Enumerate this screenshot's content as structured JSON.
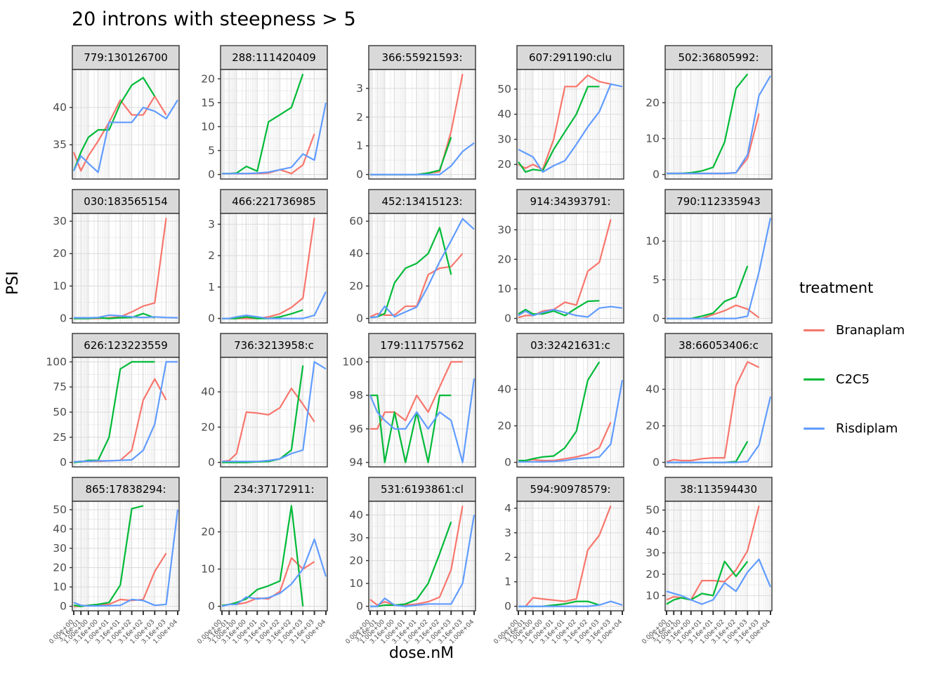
{
  "title": "20 introns with steepness > 5",
  "axes": {
    "x_label": "dose.nM",
    "y_label": "PSI"
  },
  "legend": {
    "title": "treatment",
    "items": [
      {
        "label": "Branaplam",
        "color": "#F8766D"
      },
      {
        "label": "C2C5",
        "color": "#00BA38"
      },
      {
        "label": "Risdiplam",
        "color": "#619CFF"
      }
    ]
  },
  "chart_data": {
    "type": "line",
    "title": "20 introns with steepness > 5",
    "xlabel": "dose.nM",
    "ylabel": "PSI",
    "x_scale": "pseudo-log",
    "grid": true,
    "legend_position": "right",
    "doses": [
      0,
      0.316,
      1,
      3.16,
      10,
      31.6,
      100,
      316,
      1000,
      3160,
      10000
    ],
    "x_tick_labels": [
      "0.00e+00",
      "3.16e-01",
      "1.00e+00",
      "3.16e+00",
      "1.00e+01",
      "3.16e+01",
      "1.00e+02",
      "3.16e+02",
      "1.00e+03",
      "3.16e+03",
      "1.00e+04"
    ],
    "series_names": [
      "Branaplam",
      "C2C5",
      "Risdiplam"
    ],
    "series_colors": {
      "Branaplam": "#F8766D",
      "C2C5": "#00BA38",
      "Risdiplam": "#619CFF"
    },
    "facets": [
      {
        "label": "779:130126700",
        "ylim": [
          31,
          44.5
        ],
        "yticks": [
          35,
          40
        ],
        "series": {
          "Branaplam": [
            34,
            31.5,
            33.5,
            35.5,
            38,
            41,
            39,
            39,
            41.5,
            39
          ],
          "C2C5": [
            31.5,
            34,
            36,
            37,
            37,
            40.5,
            43,
            44,
            41.5
          ],
          "Risdiplam": [
            31.5,
            33.5,
            32.5,
            31.3,
            38,
            38,
            38,
            40,
            39.5,
            38.5,
            41
          ]
        }
      },
      {
        "label": "288:111420409",
        "ylim": [
          0,
          21
        ],
        "yticks": [
          0,
          5,
          10,
          15,
          20
        ],
        "series": {
          "Branaplam": [
            0.2,
            0.2,
            0.2,
            0.2,
            0.2,
            0.3,
            1,
            0.2,
            2,
            8.5
          ],
          "C2C5": [
            0.2,
            0.2,
            0.3,
            1.7,
            0.7,
            11,
            12.5,
            14,
            21
          ],
          "Risdiplam": [
            0.2,
            0.2,
            0.2,
            0.2,
            0.3,
            0.5,
            1,
            1.5,
            4.3,
            3,
            15
          ]
        }
      },
      {
        "label": "366:55921593:",
        "ylim": [
          0,
          3.5
        ],
        "yticks": [
          0,
          1,
          2,
          3
        ],
        "series": {
          "Branaplam": [
            0,
            0,
            0,
            0,
            0,
            0,
            0.05,
            0.1,
            1.5,
            3.5
          ],
          "C2C5": [
            0,
            0,
            0,
            0,
            0,
            0,
            0.05,
            0.15,
            1.3
          ],
          "Risdiplam": [
            0,
            0,
            0,
            0,
            0,
            0,
            0,
            0,
            0.3,
            0.8,
            1.1
          ]
        }
      },
      {
        "label": "607:291190:clu",
        "ylim": [
          16,
          56
        ],
        "yticks": [
          20,
          30,
          40,
          50
        ],
        "series": {
          "Branaplam": [
            20,
            18.5,
            20,
            18,
            30,
            51,
            51,
            55.5,
            53,
            52
          ],
          "C2C5": [
            21,
            17,
            18,
            17.5,
            26,
            33,
            40,
            51,
            51
          ],
          "Risdiplam": [
            26,
            24.5,
            23,
            17,
            19.5,
            21.5,
            28,
            35,
            41,
            52,
            51
          ]
        }
      },
      {
        "label": "502:36805992:",
        "ylim": [
          0,
          28
        ],
        "yticks": [
          0,
          10,
          20
        ],
        "series": {
          "Branaplam": [
            0.3,
            0.3,
            0.3,
            0.3,
            0.3,
            0.3,
            0.3,
            0.5,
            4.5,
            17
          ],
          "C2C5": [
            0.3,
            0.3,
            0.3,
            0.5,
            1,
            2,
            9,
            24,
            28
          ],
          "Risdiplam": [
            0.3,
            0.3,
            0.3,
            0.3,
            0.3,
            0.3,
            0.3,
            0.5,
            5.5,
            22,
            27.5
          ]
        }
      },
      {
        "label": "030:183565154",
        "ylim": [
          0,
          31
        ],
        "yticks": [
          0,
          10,
          20,
          30
        ],
        "series": {
          "Branaplam": [
            0,
            0,
            0,
            0,
            0.2,
            0.5,
            2,
            3.8,
            4.8,
            31
          ],
          "C2C5": [
            0,
            0,
            0,
            0.2,
            0,
            0.2,
            0.3,
            1.5,
            0.2
          ],
          "Risdiplam": [
            0.2,
            0.2,
            0.2,
            0.3,
            1,
            0.8,
            0.5,
            0.3,
            0.5,
            0.3,
            0.2
          ]
        }
      },
      {
        "label": "466:221736985",
        "ylim": [
          0,
          3.2
        ],
        "yticks": [
          0,
          1,
          2,
          3
        ],
        "series": {
          "Branaplam": [
            0,
            0,
            0,
            0,
            0,
            0.05,
            0.15,
            0.35,
            0.65,
            3.2
          ],
          "C2C5": [
            0,
            0,
            0,
            0.05,
            0,
            0,
            0.05,
            0.15,
            0.27
          ],
          "Risdiplam": [
            0,
            0,
            0.05,
            0.1,
            0.05,
            0,
            0,
            0,
            0,
            0.1,
            0.85
          ]
        }
      },
      {
        "label": "452:13415123:",
        "ylim": [
          0,
          62
        ],
        "yticks": [
          0,
          20,
          40,
          60
        ],
        "series": {
          "Branaplam": [
            1,
            3,
            2,
            2,
            7.5,
            7.5,
            27,
            31,
            32,
            40
          ],
          "C2C5": [
            0.5,
            1,
            3,
            22,
            31,
            34,
            40,
            56,
            27
          ],
          "Risdiplam": [
            0.5,
            1,
            7.5,
            1,
            4,
            7,
            20,
            35,
            48,
            61.5,
            55
          ]
        }
      },
      {
        "label": "914:34393791:",
        "ylim": [
          0,
          34
        ],
        "yticks": [
          0,
          10,
          20,
          30
        ],
        "series": {
          "Branaplam": [
            0.3,
            1,
            1,
            2.5,
            3,
            5.5,
            4.5,
            16,
            19,
            33.5
          ],
          "C2C5": [
            1.5,
            3,
            1.5,
            1.5,
            2.5,
            1,
            3.5,
            5.8,
            6
          ],
          "Risdiplam": [
            1,
            2.5,
            1,
            2,
            3,
            2,
            1,
            0.5,
            3.5,
            4,
            3.5
          ]
        }
      },
      {
        "label": "790:112335943",
        "ylim": [
          0,
          13
        ],
        "yticks": [
          0,
          5,
          10
        ],
        "series": {
          "Branaplam": [
            0,
            0,
            0,
            0,
            0,
            0.5,
            1,
            1.7,
            1.2,
            0.1
          ],
          "C2C5": [
            0,
            0,
            0,
            0,
            0.3,
            0.7,
            2.2,
            2.8,
            6.8
          ],
          "Risdiplam": [
            0,
            0,
            0,
            0,
            0,
            0,
            0,
            0,
            0.3,
            6,
            13
          ]
        }
      },
      {
        "label": "626:123223559",
        "ylim": [
          0,
          100
        ],
        "yticks": [
          0,
          25,
          50,
          75,
          100
        ],
        "series": {
          "Branaplam": [
            0.5,
            0.5,
            1,
            1,
            1.5,
            2,
            12,
            62,
            83,
            62
          ],
          "C2C5": [
            0,
            0.5,
            2,
            2,
            25,
            93,
            100,
            100,
            100
          ],
          "Risdiplam": [
            0.5,
            1,
            1,
            1.5,
            1.5,
            2,
            2.5,
            12,
            38,
            100,
            100
          ]
        }
      },
      {
        "label": "736:3213958:c",
        "ylim": [
          0,
          57
        ],
        "yticks": [
          0,
          20,
          40
        ],
        "series": {
          "Branaplam": [
            0.5,
            1,
            5,
            28.5,
            28,
            27,
            31,
            42,
            33,
            23
          ],
          "C2C5": [
            0,
            0,
            0,
            0,
            0.3,
            0.5,
            2,
            7,
            55
          ],
          "Risdiplam": [
            0.5,
            0.5,
            0.5,
            0.5,
            0.5,
            1,
            2,
            5,
            7,
            57,
            53
          ]
        }
      },
      {
        "label": "179:111757562",
        "ylim": [
          94,
          100
        ],
        "yticks": [
          94,
          96,
          98,
          100
        ],
        "series": {
          "Branaplam": [
            96,
            96,
            97,
            97,
            96.5,
            98,
            97,
            98.5,
            100,
            100
          ],
          "C2C5": [
            98,
            98,
            94,
            97,
            94,
            97,
            94,
            98,
            98
          ],
          "Risdiplam": [
            98,
            97,
            96.5,
            96,
            96,
            97,
            96,
            97,
            96.5,
            94,
            99
          ]
        }
      },
      {
        "label": "03:32421631:c",
        "ylim": [
          0,
          55
        ],
        "yticks": [
          0,
          20,
          40
        ],
        "series": {
          "Branaplam": [
            0.5,
            1,
            1.5,
            1,
            1,
            2,
            3,
            4.5,
            8,
            22
          ],
          "C2C5": [
            1,
            1,
            2,
            3,
            3.5,
            8,
            17,
            45,
            55
          ],
          "Risdiplam": [
            0.3,
            0.3,
            0.3,
            0.3,
            0.5,
            1,
            2,
            2.5,
            3,
            10,
            45
          ]
        }
      },
      {
        "label": "38:66053406:c",
        "ylim": [
          0,
          55
        ],
        "yticks": [
          0,
          20,
          40
        ],
        "series": {
          "Branaplam": [
            0.3,
            1.5,
            1,
            1,
            2,
            2.5,
            2.5,
            42,
            55,
            52
          ],
          "C2C5": [
            0,
            0,
            0,
            0,
            0,
            0,
            0,
            0.5,
            11.5
          ],
          "Risdiplam": [
            0,
            0,
            0,
            0,
            0,
            0,
            0,
            0,
            0.5,
            9.5,
            36
          ]
        }
      },
      {
        "label": "865:17838294:",
        "ylim": [
          0,
          52
        ],
        "yticks": [
          0,
          10,
          20,
          30,
          40,
          50
        ],
        "series": {
          "Branaplam": [
            0,
            0,
            0.5,
            1,
            1,
            3.5,
            3,
            3.5,
            18,
            27.5
          ],
          "C2C5": [
            0.5,
            0,
            0.5,
            1,
            2,
            11,
            50.5,
            52
          ],
          "Risdiplam": [
            2,
            0.5,
            0.2,
            0.2,
            0.3,
            0.5,
            3.5,
            3,
            0.5,
            1,
            50
          ]
        }
      },
      {
        "label": "234:37172911:",
        "ylim": [
          0,
          27
        ],
        "yticks": [
          0,
          10,
          20
        ],
        "series": {
          "Branaplam": [
            0.2,
            0.5,
            0.5,
            1,
            2.2,
            2,
            4,
            13,
            10,
            12
          ],
          "C2C5": [
            0.2,
            0.5,
            1,
            2,
            4.5,
            5.5,
            6.8,
            27,
            0
          ],
          "Risdiplam": [
            0,
            0.5,
            0.5,
            2.5,
            2,
            2.3,
            3.5,
            6,
            10,
            18,
            8
          ]
        }
      },
      {
        "label": "531:6193861:cl",
        "ylim": [
          0,
          44
        ],
        "yticks": [
          0,
          10,
          20,
          30,
          40
        ],
        "series": {
          "Branaplam": [
            3,
            0.5,
            2,
            0.5,
            0.5,
            1,
            2,
            4,
            16,
            44
          ],
          "C2C5": [
            0,
            0,
            0.5,
            0.5,
            1,
            3,
            10,
            23,
            37
          ],
          "Risdiplam": [
            0,
            0,
            3.5,
            0.5,
            0,
            0.5,
            1,
            1,
            1,
            10,
            40
          ]
        }
      },
      {
        "label": "594:90978579:",
        "ylim": [
          0,
          4.1
        ],
        "yticks": [
          0,
          1,
          2,
          3,
          4
        ],
        "series": {
          "Branaplam": [
            0,
            0,
            0.35,
            0.3,
            0.25,
            0.2,
            0.3,
            2.3,
            2.9,
            4.1
          ],
          "C2C5": [
            0,
            0,
            0,
            0,
            0.05,
            0.1,
            0.2,
            0.2,
            0.05
          ],
          "Risdiplam": [
            0,
            0,
            0,
            0,
            0,
            0,
            0,
            0,
            0.05,
            0.2,
            0.05
          ]
        }
      },
      {
        "label": "38:113594430",
        "ylim": [
          5,
          52
        ],
        "yticks": [
          10,
          20,
          30,
          40,
          50
        ],
        "series": {
          "Branaplam": [
            8,
            9.5,
            9,
            8,
            17,
            17,
            16.5,
            22,
            31,
            52
          ],
          "C2C5": [
            6,
            8,
            9,
            8,
            11,
            10,
            26,
            19,
            26
          ],
          "Risdiplam": [
            12,
            11,
            10,
            8,
            6,
            8,
            16,
            12,
            21,
            27,
            14
          ]
        }
      }
    ]
  }
}
